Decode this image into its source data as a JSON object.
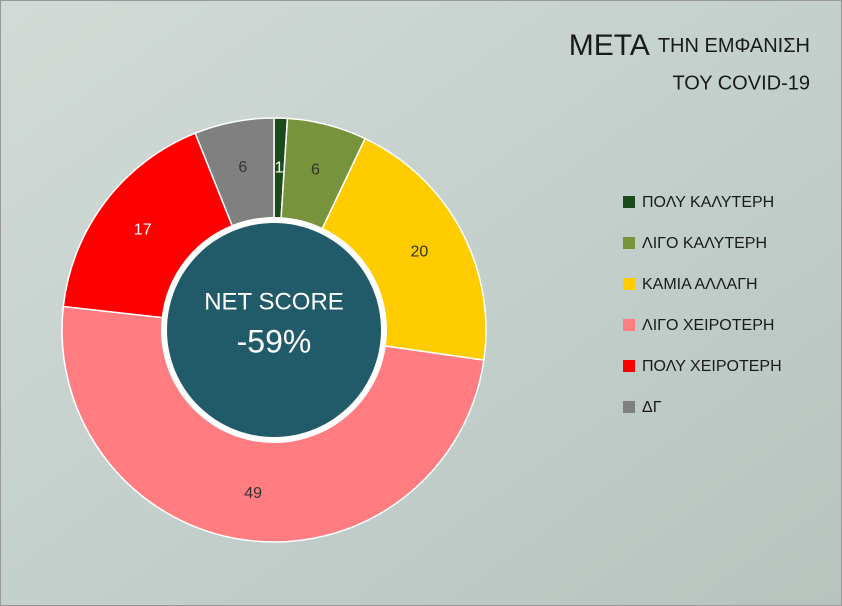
{
  "chart_data": {
    "type": "donut",
    "title": "ΜΕΤΑ",
    "subtitle": [
      "ΤΗΝ ΕΜΦΑΝΙΣΗ",
      "ΤΟΥ COVID-19"
    ],
    "center_title": "NET SCORE",
    "center_value": {
      "value": -59,
      "label": "-59%"
    },
    "center_color": "#215a68",
    "categories": [
      "ΠΟΛΥ ΚΑΛΥΤΕΡΗ",
      "ΛΙΓΟ ΚΑΛΥΤΕΡΗ",
      "ΚΑΜΙΑ ΑΛΛΑΓΗ",
      "ΛΙΓΟ ΧΕΙΡΟΤΕΡΗ",
      "ΠΟΛΥ ΧΕΙΡΟΤΕΡΗ",
      "ΔΓ"
    ],
    "values": [
      1,
      6,
      20,
      49,
      17,
      6
    ],
    "colors": [
      "#1b4a1b",
      "#77933c",
      "#ffcc00",
      "#ff7c80",
      "#ff0000",
      "#808080"
    ],
    "legend": "right"
  }
}
